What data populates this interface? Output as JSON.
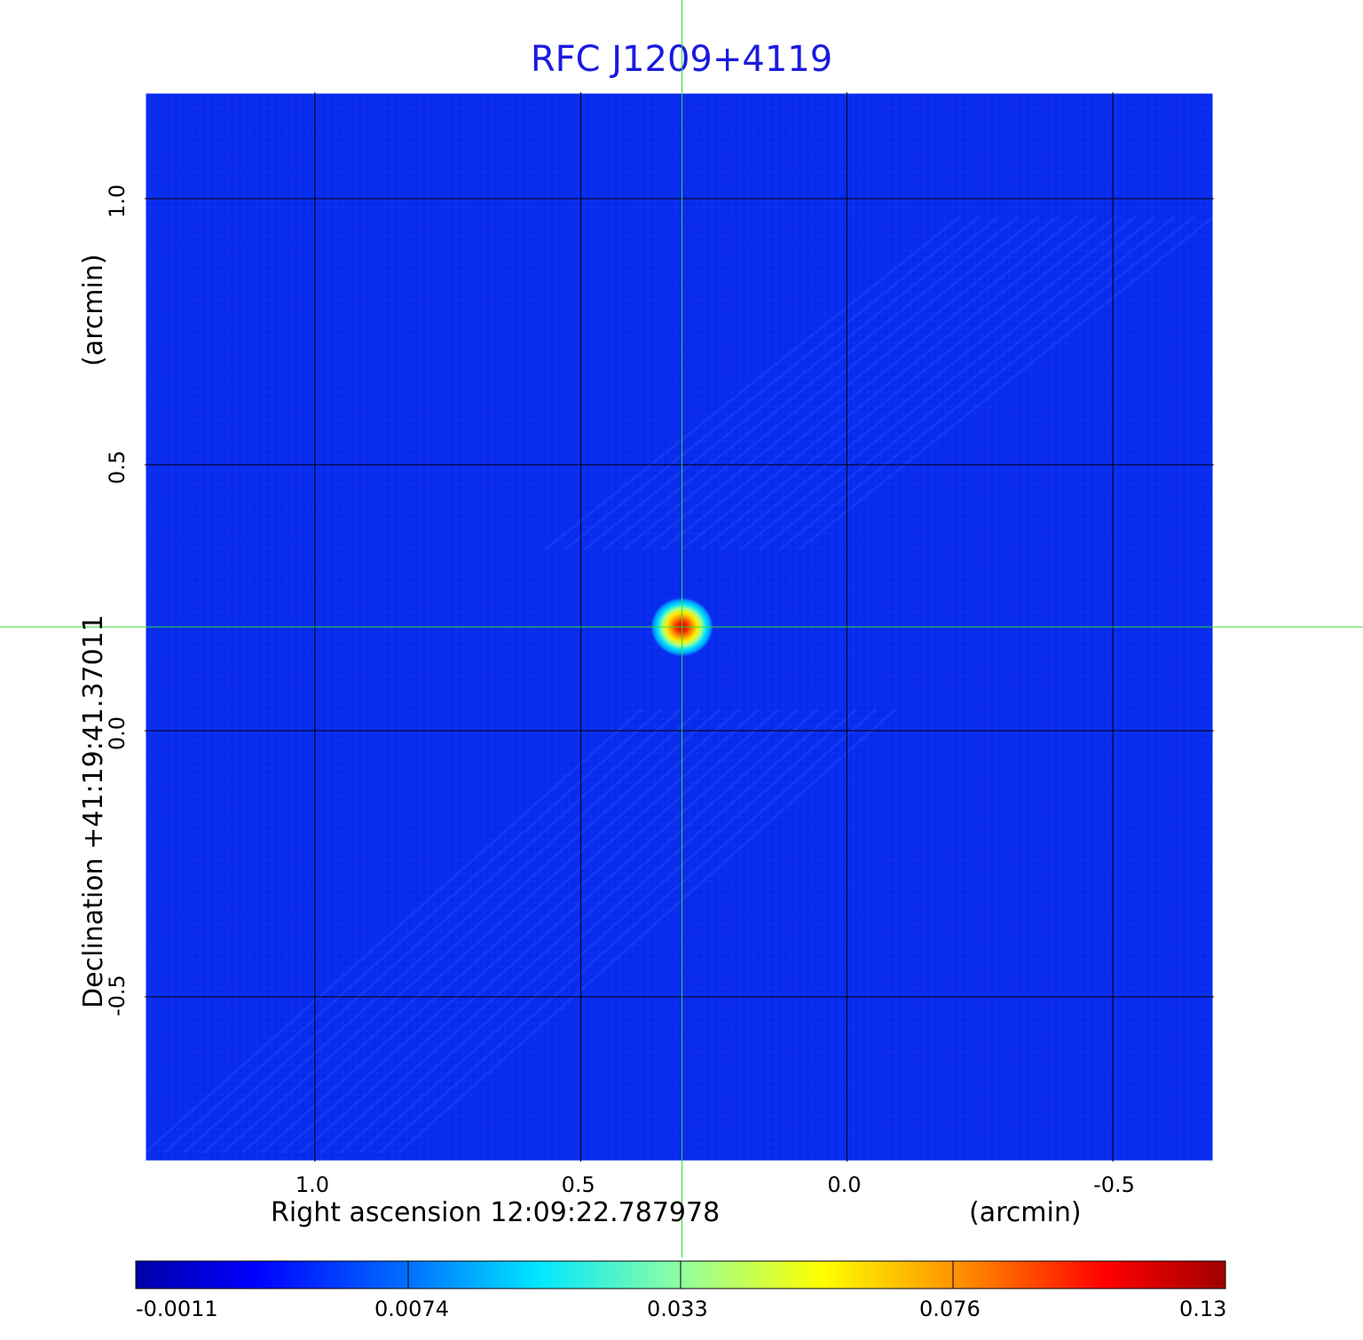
{
  "chart_data": {
    "type": "heatmap",
    "title": "RFC J1209+4119",
    "x_axis": {
      "label": "Right ascension  12:09:22.787978",
      "unit_label": "(arcmin)",
      "ticks": [
        1.0,
        0.5,
        0.0,
        -0.5
      ],
      "tick_labels": [
        "1.0",
        "0.5",
        "0.0",
        "-0.5"
      ],
      "range": [
        1.32,
        -0.69
      ],
      "direction": "decreasing-to-right"
    },
    "y_axis": {
      "label": "Declination  +41:19:41.37011",
      "unit_label": "(arcmin)",
      "ticks": [
        1.0,
        0.5,
        0.0,
        -0.5
      ],
      "tick_labels": [
        "1.0",
        "0.5",
        "0.0",
        "-0.5"
      ],
      "range": [
        -0.81,
        1.2
      ]
    },
    "grid": true,
    "crosshair": {
      "x": 0.31,
      "y": 0.195,
      "color": "#33dd33"
    },
    "source": {
      "x": 0.31,
      "y": 0.195,
      "peak": 0.13
    },
    "background_level": 0.0,
    "colormap": "jet",
    "colorbar": {
      "position": "bottom",
      "ticks": [
        -0.0011,
        0.0074,
        0.033,
        0.076,
        0.13
      ],
      "tick_labels": [
        "-0.0011",
        "0.0074",
        "0.033",
        "0.076",
        "0.13"
      ]
    }
  }
}
